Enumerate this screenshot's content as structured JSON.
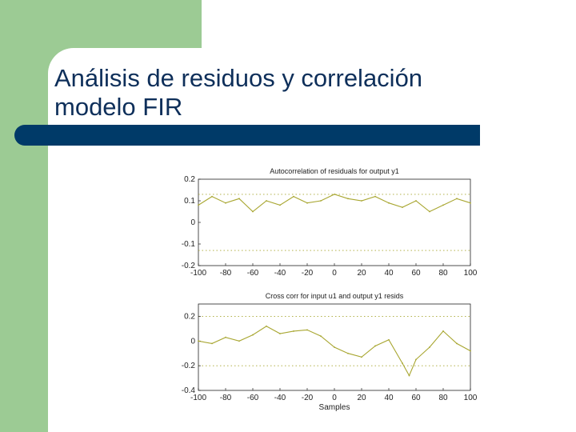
{
  "slide": {
    "title_line1": "Análisis de residuos y correlación",
    "title_line2": "modelo FIR",
    "colors": {
      "green": "#9ccb94",
      "navy": "#003a68",
      "plot_line": "#a8a630"
    }
  },
  "chart_data": [
    {
      "type": "line",
      "title": "Autocorrelation of residuals for output y1",
      "xlabel": "",
      "ylabel": "",
      "xlim": [
        -100,
        100
      ],
      "ylim": [
        -0.2,
        0.2
      ],
      "xticks": [
        "-100",
        "-80",
        "-60",
        "-40",
        "-20",
        "0",
        "20",
        "40",
        "60",
        "80",
        "100"
      ],
      "yticks": [
        "0.2",
        "0.1",
        "0",
        "-0.1",
        "-0.2"
      ],
      "confidence_bounds": [
        0.13,
        -0.13
      ],
      "series": [
        {
          "x": [
            -100,
            -90,
            -80,
            -70,
            -60,
            -50,
            -40,
            -30,
            -20,
            -10,
            0,
            10,
            20,
            30,
            40,
            50,
            60,
            70,
            80,
            90,
            100
          ],
          "values": [
            0.08,
            0.12,
            0.09,
            0.11,
            0.05,
            0.1,
            0.08,
            0.12,
            0.09,
            0.1,
            0.13,
            0.11,
            0.1,
            0.12,
            0.09,
            0.07,
            0.1,
            0.05,
            0.08,
            0.11,
            0.09
          ]
        }
      ]
    },
    {
      "type": "line",
      "title": "Cross corr for input u1 and output y1 resids",
      "xlabel": "Samples",
      "ylabel": "",
      "xlim": [
        -100,
        100
      ],
      "ylim": [
        -0.4,
        0.3
      ],
      "xticks": [
        "-100",
        "-80",
        "-60",
        "-40",
        "-20",
        "0",
        "20",
        "40",
        "60",
        "80",
        "100"
      ],
      "yticks": [
        "0.2",
        "0",
        "-0.2",
        "-0.4"
      ],
      "confidence_bounds": [
        0.2,
        -0.2
      ],
      "series": [
        {
          "x": [
            -100,
            -90,
            -80,
            -70,
            -60,
            -50,
            -40,
            -30,
            -20,
            -10,
            0,
            10,
            20,
            30,
            40,
            50,
            55,
            60,
            70,
            80,
            90,
            100
          ],
          "values": [
            0.0,
            -0.02,
            0.03,
            0.0,
            0.05,
            0.12,
            0.06,
            0.08,
            0.09,
            0.04,
            -0.05,
            -0.1,
            -0.13,
            -0.04,
            0.01,
            -0.18,
            -0.28,
            -0.15,
            -0.05,
            0.08,
            -0.02,
            -0.08
          ]
        }
      ]
    }
  ]
}
